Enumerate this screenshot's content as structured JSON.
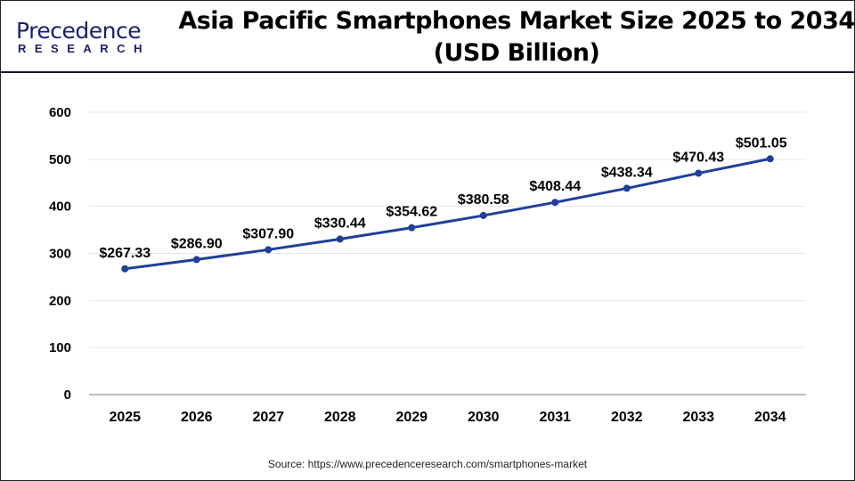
{
  "header": {
    "logo_text_top": "Precedence",
    "logo_text_bottom": "RESEARCH",
    "title_line1": "Asia Pacific Smartphones Market Size 2025 to 2034",
    "title_line2": "(USD Billion)"
  },
  "source": "Source: https://www.precedenceresearch.com/smartphones-market",
  "colors": {
    "line": "#1f3f9a",
    "header_rule": "#14143c",
    "grid": "#e6e6e6",
    "axis": "#bfbfbf"
  },
  "chart_data": {
    "type": "line",
    "title": "Asia Pacific Smartphones Market Size 2025 to 2034 (USD Billion)",
    "categories": [
      "2025",
      "2026",
      "2027",
      "2028",
      "2029",
      "2030",
      "2031",
      "2032",
      "2033",
      "2034"
    ],
    "values": [
      267.33,
      286.9,
      307.9,
      330.44,
      354.62,
      380.58,
      408.44,
      438.34,
      470.43,
      501.05
    ],
    "data_labels": [
      "$267.33",
      "$286.90",
      "$307.90",
      "$330.44",
      "$354.62",
      "$380.58",
      "$408.44",
      "$438.34",
      "$470.43",
      "$501.05"
    ],
    "yticks": [
      "0",
      "100",
      "200",
      "300",
      "400",
      "500",
      "600"
    ],
    "ylim": [
      0,
      600
    ],
    "grid": true,
    "legend": "none"
  }
}
